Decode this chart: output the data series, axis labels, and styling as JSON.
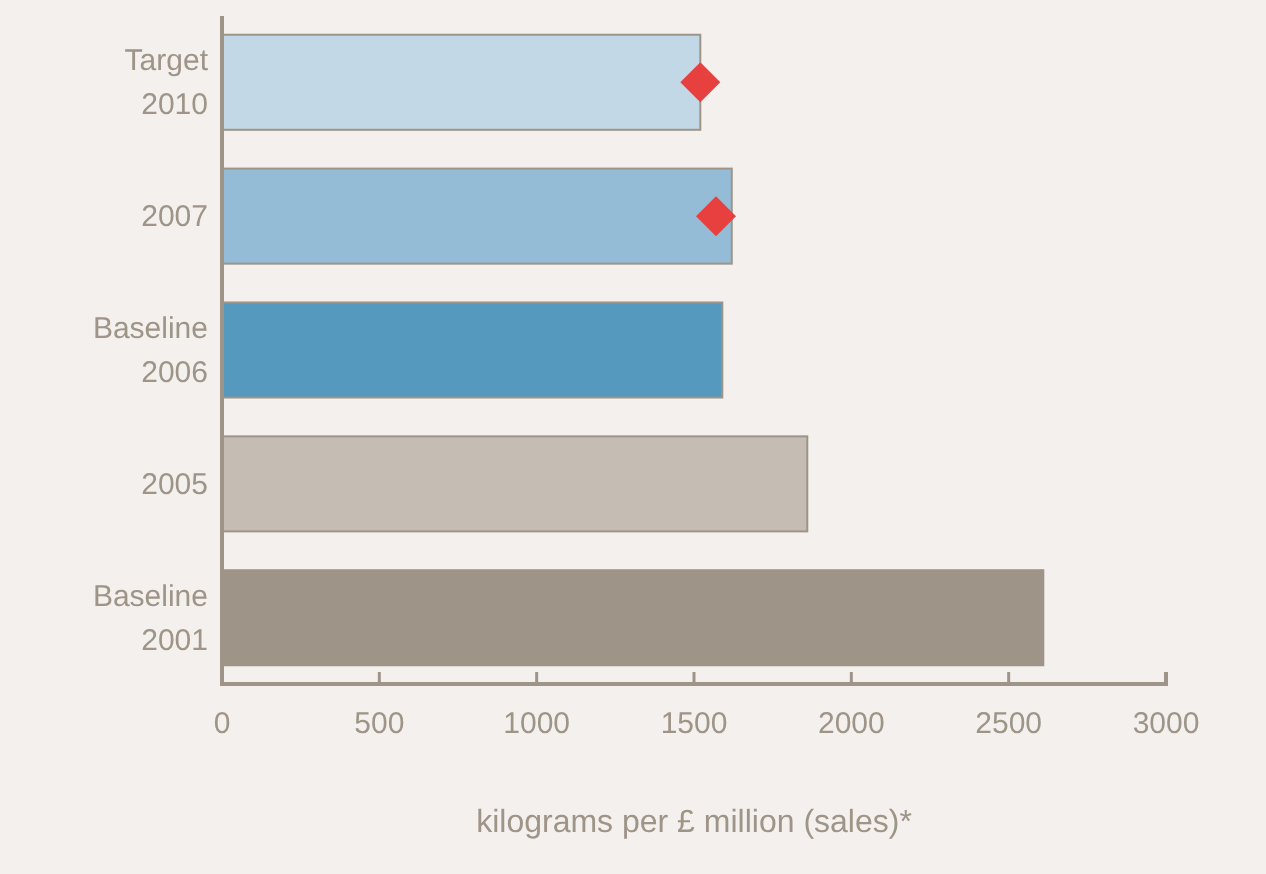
{
  "chart_data": {
    "type": "bar",
    "orientation": "horizontal",
    "xlabel": "kilograms per £ million (sales)*",
    "categories": [
      "Target 2010",
      "2007",
      "Baseline 2006",
      "2005",
      "Baseline 2001"
    ],
    "series": [
      {
        "colors": [
          "#c2d8e6",
          "#94bcd6",
          "#5599bf",
          "#c5bdb4",
          "#9e9487"
        ],
        "values": [
          1520,
          1620,
          1590,
          1860,
          2610
        ]
      },
      {
        "type": "scatter",
        "values": [
          1520,
          1570,
          null,
          null,
          null
        ],
        "color": "#e8403f",
        "marker": "diamond"
      }
    ],
    "xlim": [
      0,
      3000
    ],
    "xticks": [
      0,
      500,
      1000,
      1500,
      2000,
      2500,
      3000
    ],
    "grid": false
  }
}
